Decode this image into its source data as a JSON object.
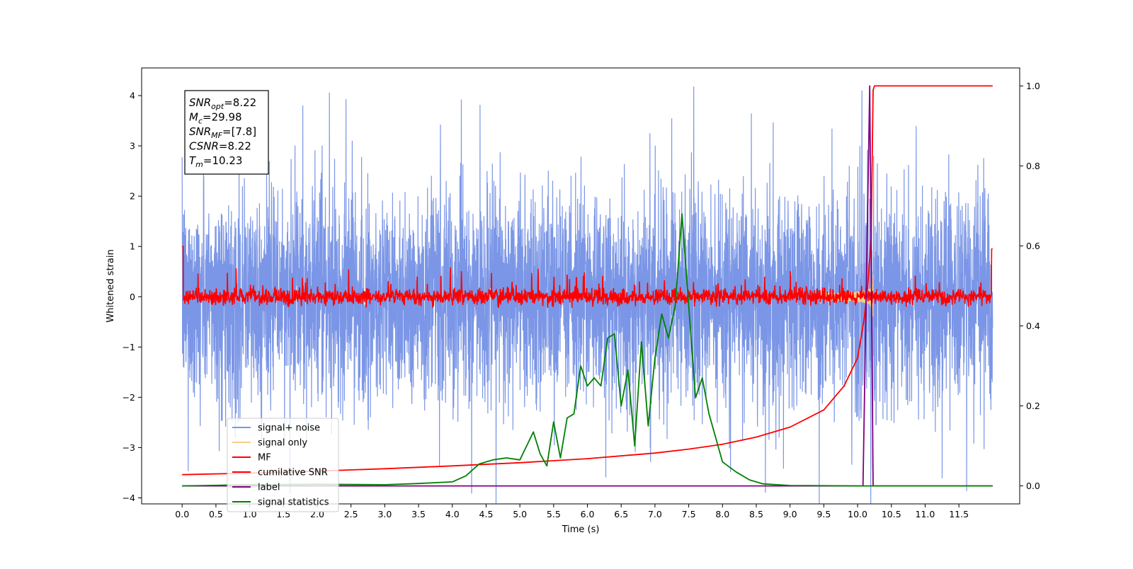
{
  "chart_data": {
    "type": "line",
    "xlabel": "Time (s)",
    "ylabel": "Whitened strain",
    "xlim": [
      -0.6,
      12.4
    ],
    "ylim": [
      -4.12,
      4.55
    ],
    "y2lim": [
      -0.045,
      1.045
    ],
    "x_ticks": [
      "0.0",
      "0.5",
      "1.0",
      "1.5",
      "2.0",
      "2.5",
      "3.0",
      "3.5",
      "4.0",
      "4.5",
      "5.0",
      "5.5",
      "6.0",
      "6.5",
      "7.0",
      "7.5",
      "8.0",
      "8.5",
      "9.0",
      "9.5",
      "10.0",
      "10.5",
      "11.0",
      "11.5"
    ],
    "y_ticks": [
      "4",
      "3",
      "2",
      "1",
      "0",
      "−1",
      "−2",
      "−3",
      "−4"
    ],
    "y2_ticks": [
      "1.0",
      "0.8",
      "0.6",
      "0.4",
      "0.2",
      "0.0"
    ],
    "info_box": [
      {
        "base": "SNR",
        "sub": "opt",
        "value": "=8.22"
      },
      {
        "base": "M",
        "sub": "c",
        "value": "=29.98"
      },
      {
        "base": "SNR",
        "sub": "MF",
        "value": "=[7.8]"
      },
      {
        "base": "CSNR",
        "sub": "",
        "value": "=8.22"
      },
      {
        "base": "T",
        "sub": "m",
        "value": "=10.23"
      }
    ],
    "legend_position": "lower-left",
    "grid": false,
    "series": [
      {
        "name": "signal+ noise",
        "color": "#7b96e6",
        "axis": "left",
        "x_range": [
          0.0,
          12.0
        ],
        "amplitude_envelope": [
          -4.12,
          4.18
        ]
      },
      {
        "name": "signal only",
        "color": "#f5cf86",
        "axis": "left",
        "chirp_center": 10.23,
        "amplitude_envelope": [
          -0.5,
          0.5
        ]
      },
      {
        "name": "MF",
        "color": "#ff0000",
        "axis": "left",
        "x_range": [
          0.0,
          12.0
        ],
        "amplitude_envelope": [
          -0.2,
          0.5
        ]
      },
      {
        "name": "cumilative SNR",
        "color": "#ff0000",
        "axis": "right",
        "x": [
          0.0,
          1.0,
          2.0,
          3.0,
          4.0,
          5.0,
          6.0,
          7.0,
          7.5,
          8.0,
          8.5,
          9.0,
          9.5,
          9.8,
          10.0,
          10.1,
          10.15,
          10.2,
          10.23,
          10.25,
          11.0,
          12.0
        ],
        "values": [
          0.028,
          0.032,
          0.037,
          0.043,
          0.05,
          0.058,
          0.068,
          0.082,
          0.092,
          0.104,
          0.122,
          0.147,
          0.19,
          0.25,
          0.32,
          0.42,
          0.5,
          0.62,
          0.99,
          1.0,
          1.0,
          1.0
        ]
      },
      {
        "name": "label",
        "color": "#800080",
        "axis": "right",
        "x": [
          0.0,
          10.08,
          10.18,
          10.23,
          12.0
        ],
        "values": [
          0.0,
          0.0,
          1.0,
          0.0,
          0.0
        ]
      },
      {
        "name": "signal statistics",
        "color": "#008000",
        "axis": "right",
        "x": [
          0.0,
          1.0,
          2.0,
          3.0,
          3.5,
          4.0,
          4.2,
          4.4,
          4.6,
          4.8,
          5.0,
          5.1,
          5.2,
          5.3,
          5.4,
          5.5,
          5.6,
          5.7,
          5.8,
          5.9,
          6.0,
          6.1,
          6.2,
          6.3,
          6.4,
          6.5,
          6.6,
          6.7,
          6.8,
          6.9,
          7.0,
          7.1,
          7.2,
          7.3,
          7.4,
          7.5,
          7.6,
          7.7,
          7.8,
          7.9,
          8.0,
          8.2,
          8.4,
          8.6,
          9.0,
          10.0,
          11.0,
          12.0
        ],
        "values": [
          0.0,
          0.003,
          0.004,
          0.003,
          0.006,
          0.01,
          0.025,
          0.055,
          0.065,
          0.07,
          0.065,
          0.1,
          0.135,
          0.08,
          0.05,
          0.16,
          0.07,
          0.17,
          0.18,
          0.3,
          0.25,
          0.27,
          0.25,
          0.37,
          0.38,
          0.2,
          0.29,
          0.1,
          0.36,
          0.15,
          0.32,
          0.43,
          0.37,
          0.45,
          0.68,
          0.45,
          0.22,
          0.27,
          0.18,
          0.12,
          0.06,
          0.035,
          0.015,
          0.005,
          0.001,
          0.0,
          0.0,
          0.0
        ]
      }
    ]
  }
}
